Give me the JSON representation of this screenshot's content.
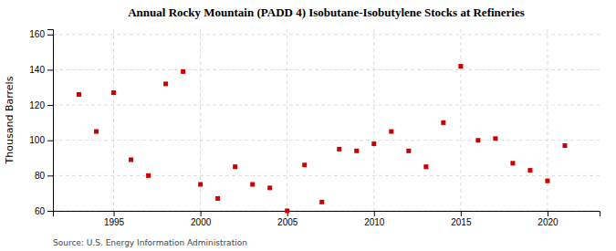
{
  "chart_data": {
    "type": "scatter",
    "title": "Annual Rocky Mountain (PADD 4) Isobutane-Isobutylene Stocks at Refineries",
    "ylabel": "Thousand Barrels",
    "annotations": [
      "Source: U.S. Energy Information Administration"
    ],
    "x": [
      1993,
      1994,
      1995,
      1996,
      1997,
      1998,
      1999,
      2000,
      2001,
      2002,
      2003,
      2004,
      2005,
      2006,
      2007,
      2008,
      2009,
      2010,
      2011,
      2012,
      2013,
      2014,
      2015,
      2016,
      2017,
      2018,
      2019,
      2020,
      2021
    ],
    "values": [
      126,
      105,
      127,
      89,
      80,
      132,
      139,
      75,
      67,
      85,
      75,
      73,
      60,
      86,
      65,
      95,
      94,
      98,
      105,
      94,
      85,
      110,
      142,
      100,
      101,
      87,
      83,
      77,
      97
    ],
    "color": "#cc0000",
    "marker": "square",
    "xlim": [
      1991.5,
      2023
    ],
    "xticks": [
      1995,
      2000,
      2005,
      2010,
      2015,
      2020
    ],
    "ylim": [
      60,
      163
    ],
    "yticks": [
      60,
      80,
      100,
      120,
      140,
      160
    ],
    "grid": true
  }
}
